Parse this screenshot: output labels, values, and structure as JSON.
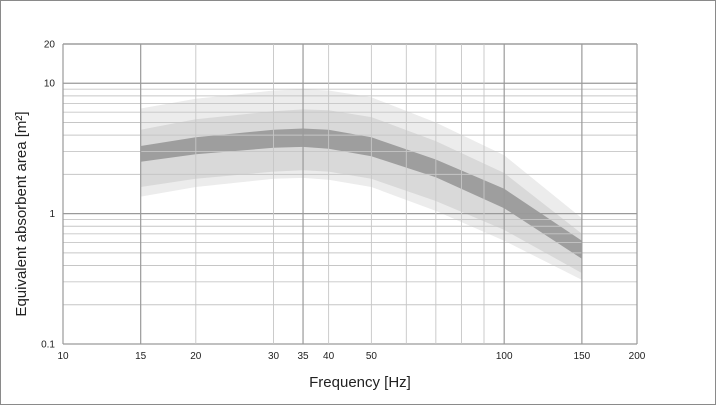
{
  "chart_data": {
    "type": "area",
    "title": "",
    "xlabel": "Frequency [Hz]",
    "ylabel": "Equivalent absorbent area  [m²]",
    "x_scale": "log",
    "y_scale": "log",
    "xlim": [
      10,
      200
    ],
    "ylim": [
      0.1,
      20
    ],
    "x_ticks": [
      10,
      15,
      20,
      30,
      35,
      40,
      50,
      100,
      150,
      200
    ],
    "x_tick_labels": [
      "10",
      "15",
      "20",
      "30",
      "35",
      "40",
      "50",
      "100",
      "150",
      "200"
    ],
    "x_minor_gridlines": [
      60,
      70,
      80,
      90
    ],
    "y_ticks": [
      0.1,
      1,
      10,
      20
    ],
    "y_tick_labels": [
      "0.1",
      "1",
      "10",
      "20"
    ],
    "grid": true,
    "x": [
      15,
      20,
      30,
      35,
      40,
      50,
      70,
      100,
      150
    ],
    "bands": [
      {
        "lower": [
          1.35,
          1.6,
          1.85,
          1.88,
          1.82,
          1.6,
          1.05,
          0.62,
          0.31
        ],
        "upper": [
          6.4,
          7.6,
          8.8,
          9.0,
          8.8,
          7.8,
          5.0,
          2.8,
          0.92
        ],
        "color": "#ececec"
      },
      {
        "lower": [
          1.6,
          1.85,
          2.1,
          2.15,
          2.1,
          1.85,
          1.25,
          0.75,
          0.35
        ],
        "upper": [
          4.4,
          5.3,
          6.1,
          6.3,
          6.2,
          5.5,
          3.6,
          2.05,
          0.7
        ],
        "color": "#d9d9d9"
      },
      {
        "lower": [
          2.5,
          2.85,
          3.2,
          3.25,
          3.15,
          2.75,
          1.9,
          1.1,
          0.45
        ],
        "upper": [
          3.3,
          3.85,
          4.4,
          4.5,
          4.4,
          3.85,
          2.6,
          1.55,
          0.62
        ],
        "color": "#9e9e9e"
      }
    ]
  },
  "colors": {
    "grid_major": "#9a9a9a",
    "grid_minor": "#c6c6c6",
    "frame": "#8a8a8a"
  }
}
